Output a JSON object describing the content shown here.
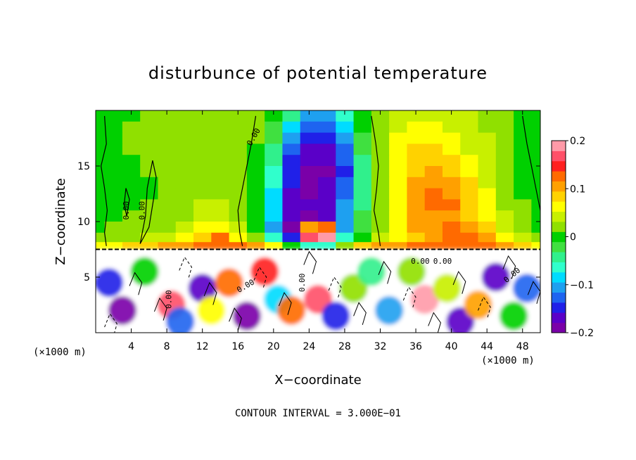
{
  "chart_data": {
    "type": "heatmap",
    "title": "disturbunce of potential temperature",
    "xlabel": "X−coordinate",
    "ylabel": "Z−coordinate",
    "x_unit_label": "(×1000 m)",
    "x_unit_label_right": "(×1000 m)",
    "xlim": [
      0,
      50
    ],
    "ylim": [
      0,
      20
    ],
    "x_ticks": [
      4,
      8,
      12,
      16,
      20,
      24,
      28,
      32,
      36,
      40,
      44,
      48
    ],
    "y_ticks": [
      5,
      10,
      15
    ],
    "colorbar": {
      "ticks": [
        "0.2",
        "0.1",
        "0",
        "−0.1",
        "−0.2"
      ],
      "tick_values": [
        0.2,
        0.1,
        0.0,
        -0.1,
        -0.2
      ],
      "range": [
        -0.2,
        0.2
      ],
      "colors": [
        "#7a00a8",
        "#5a00c8",
        "#2020e8",
        "#1e64f0",
        "#1ea0f0",
        "#00dcff",
        "#30ffcc",
        "#30f08c",
        "#40e040",
        "#00d000",
        "#90e000",
        "#c8f000",
        "#ffff00",
        "#ffd200",
        "#ffa000",
        "#ff6a00",
        "#ff2020",
        "#ff5068",
        "#ff9aa8"
      ]
    },
    "contour_interval": "CONTOUR INTERVAL = 3.000E−01",
    "contour_labels": [
      "0.00",
      "0.00",
      "0.00",
      "0.00",
      "0.00",
      "0.00",
      "0.00",
      "0.00",
      "0.00"
    ],
    "grid_x": [
      0,
      2,
      4,
      6,
      8,
      10,
      12,
      14,
      16,
      18,
      20,
      22,
      24,
      26,
      28,
      30,
      32,
      34,
      36,
      38,
      40,
      42,
      44,
      46,
      48,
      50
    ],
    "grid_z": [
      19.5,
      18.5,
      17.5,
      16.5,
      15.5,
      14.5,
      13.5,
      12.5,
      11.5,
      10.5,
      9.5,
      8.5,
      7.8
    ],
    "values": [
      [
        0.0,
        0.01,
        0.01,
        0.02,
        0.03,
        0.02,
        0.02,
        0.03,
        0.03,
        0.02,
        0.0,
        -0.05,
        -0.1,
        -0.1,
        -0.06,
        0.0,
        0.02,
        0.04,
        0.05,
        0.05,
        0.05,
        0.04,
        0.03,
        0.02,
        0.01,
        0.0
      ],
      [
        0.0,
        0.01,
        0.02,
        0.03,
        0.03,
        0.03,
        0.03,
        0.03,
        0.03,
        0.02,
        -0.02,
        -0.08,
        -0.13,
        -0.13,
        -0.08,
        -0.01,
        0.02,
        0.05,
        0.06,
        0.06,
        0.05,
        0.04,
        0.03,
        0.02,
        0.01,
        0.0
      ],
      [
        0.0,
        0.01,
        0.02,
        0.03,
        0.03,
        0.03,
        0.02,
        0.03,
        0.03,
        0.02,
        -0.03,
        -0.1,
        -0.15,
        -0.15,
        -0.1,
        -0.02,
        0.03,
        0.06,
        0.07,
        0.07,
        0.06,
        0.05,
        0.04,
        0.02,
        0.01,
        0.0
      ],
      [
        0.0,
        0.01,
        0.02,
        0.02,
        0.02,
        0.03,
        0.03,
        0.03,
        0.02,
        0.01,
        -0.04,
        -0.12,
        -0.16,
        -0.16,
        -0.12,
        -0.03,
        0.03,
        0.06,
        0.08,
        0.08,
        0.07,
        0.05,
        0.04,
        0.02,
        0.01,
        0.0
      ],
      [
        0.0,
        0.0,
        0.01,
        0.02,
        0.02,
        0.02,
        0.03,
        0.03,
        0.02,
        0.0,
        -0.05,
        -0.14,
        -0.17,
        -0.17,
        -0.13,
        -0.04,
        0.03,
        0.07,
        0.09,
        0.09,
        0.08,
        0.06,
        0.04,
        0.03,
        0.01,
        0.0
      ],
      [
        0.0,
        0.0,
        0.01,
        0.02,
        0.02,
        0.02,
        0.03,
        0.03,
        0.02,
        0.0,
        -0.06,
        -0.15,
        -0.18,
        -0.18,
        -0.14,
        -0.05,
        0.03,
        0.07,
        0.09,
        0.1,
        0.09,
        0.07,
        0.05,
        0.03,
        0.01,
        0.0
      ],
      [
        0.0,
        -0.01,
        0.0,
        0.01,
        0.02,
        0.02,
        0.03,
        0.03,
        0.02,
        0.0,
        -0.07,
        -0.15,
        -0.18,
        -0.17,
        -0.13,
        -0.05,
        0.03,
        0.07,
        0.1,
        0.11,
        0.1,
        0.08,
        0.05,
        0.03,
        0.01,
        0.0
      ],
      [
        0.0,
        -0.01,
        0.0,
        0.01,
        0.02,
        0.03,
        0.03,
        0.03,
        0.02,
        0.0,
        -0.08,
        -0.16,
        -0.18,
        -0.16,
        -0.12,
        -0.04,
        0.03,
        0.07,
        0.1,
        0.12,
        0.11,
        0.09,
        0.06,
        0.03,
        0.01,
        0.0
      ],
      [
        0.0,
        0.0,
        0.01,
        0.02,
        0.02,
        0.03,
        0.04,
        0.04,
        0.03,
        0.0,
        -0.08,
        -0.16,
        -0.17,
        -0.16,
        -0.11,
        -0.04,
        0.02,
        0.07,
        0.1,
        0.12,
        0.12,
        0.09,
        0.06,
        0.03,
        0.02,
        0.0
      ],
      [
        0.01,
        0.01,
        0.02,
        0.02,
        0.03,
        0.03,
        0.05,
        0.05,
        0.03,
        0.0,
        -0.09,
        -0.17,
        -0.19,
        -0.16,
        -0.11,
        -0.03,
        0.03,
        0.07,
        0.1,
        0.11,
        0.11,
        0.09,
        0.07,
        0.04,
        0.02,
        0.01
      ],
      [
        0.01,
        0.02,
        0.02,
        0.03,
        0.03,
        0.04,
        0.06,
        0.07,
        0.04,
        0.0,
        -0.1,
        -0.19,
        0.1,
        0.12,
        -0.1,
        -0.03,
        0.03,
        0.07,
        0.1,
        0.11,
        0.12,
        0.1,
        0.08,
        0.05,
        0.03,
        0.01
      ],
      [
        0.02,
        0.03,
        0.03,
        0.04,
        0.05,
        0.06,
        0.09,
        0.12,
        0.06,
        0.02,
        -0.06,
        -0.14,
        0.16,
        0.18,
        -0.06,
        0.0,
        0.04,
        0.06,
        0.08,
        0.1,
        0.12,
        0.12,
        0.1,
        0.07,
        0.04,
        0.02
      ],
      [
        0.06,
        0.07,
        0.08,
        0.09,
        0.1,
        0.11,
        0.12,
        0.13,
        0.12,
        0.1,
        0.06,
        0.0,
        -0.06,
        -0.06,
        0.02,
        0.08,
        0.1,
        0.11,
        0.12,
        0.13,
        0.13,
        0.13,
        0.12,
        0.11,
        0.09,
        0.07
      ]
    ],
    "lower_region_zlim": [
      0,
      7.5
    ],
    "lower_blobs": [
      {
        "x": 1.5,
        "z": 4.5,
        "v": -0.14
      },
      {
        "x": 3.0,
        "z": 2.0,
        "v": -0.18
      },
      {
        "x": 5.5,
        "z": 5.5,
        "v": 0.0
      },
      {
        "x": 8.5,
        "z": 2.5,
        "v": 0.16
      },
      {
        "x": 9.5,
        "z": 1.0,
        "v": -0.12
      },
      {
        "x": 12.0,
        "z": 4.0,
        "v": -0.16
      },
      {
        "x": 13.0,
        "z": 2.0,
        "v": 0.06
      },
      {
        "x": 15.0,
        "z": 4.5,
        "v": 0.12
      },
      {
        "x": 17.0,
        "z": 1.5,
        "v": -0.19
      },
      {
        "x": 19.0,
        "z": 5.5,
        "v": 0.15
      },
      {
        "x": 20.5,
        "z": 3.0,
        "v": -0.08
      },
      {
        "x": 22.0,
        "z": 2.0,
        "v": 0.12
      },
      {
        "x": 25.0,
        "z": 3.0,
        "v": 0.17
      },
      {
        "x": 27.0,
        "z": 1.5,
        "v": -0.15
      },
      {
        "x": 29.0,
        "z": 4.0,
        "v": 0.02
      },
      {
        "x": 31.0,
        "z": 5.5,
        "v": -0.05
      },
      {
        "x": 33.0,
        "z": 2.0,
        "v": -0.1
      },
      {
        "x": 35.5,
        "z": 5.5,
        "v": 0.03
      },
      {
        "x": 37.0,
        "z": 3.0,
        "v": 0.18
      },
      {
        "x": 39.5,
        "z": 4.0,
        "v": 0.05
      },
      {
        "x": 41.0,
        "z": 1.0,
        "v": -0.17
      },
      {
        "x": 43.0,
        "z": 2.5,
        "v": 0.1
      },
      {
        "x": 45.0,
        "z": 5.0,
        "v": -0.16
      },
      {
        "x": 47.0,
        "z": 1.5,
        "v": 0.0
      },
      {
        "x": 48.5,
        "z": 4.0,
        "v": -0.12
      }
    ]
  }
}
